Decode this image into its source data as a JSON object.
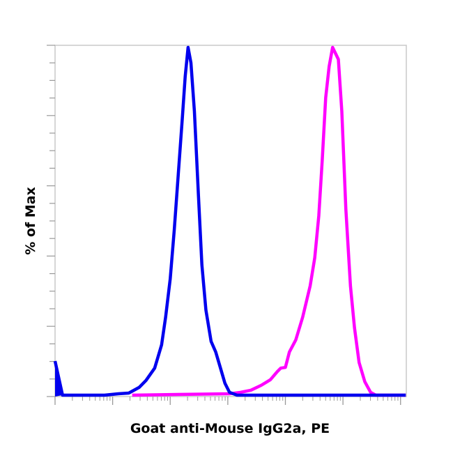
{
  "chart_data": {
    "type": "line",
    "title": "",
    "xlabel": "Goat anti-Mouse IgG2a, PE",
    "ylabel": "% of Max",
    "x_scale": "log (decades, unlabeled)",
    "xlim": [
      0,
      6.1
    ],
    "ylim": [
      0,
      100
    ],
    "grid": false,
    "legend": "none",
    "series": [
      {
        "color": "#0000ee",
        "x": [
          0,
          0.13,
          0.86,
          1.1,
          1.28,
          1.46,
          1.58,
          1.73,
          1.85,
          1.92,
          2.0,
          2.07,
          2.14,
          2.21,
          2.26,
          2.31,
          2.36,
          2.42,
          2.49,
          2.55,
          2.62,
          2.71,
          2.79,
          2.88,
          2.95,
          3.03,
          3.16,
          6.09
        ],
        "y": [
          10.1,
          0.4,
          0.4,
          0.8,
          1.0,
          2.6,
          4.6,
          8.1,
          14.7,
          22.6,
          33.5,
          47.4,
          63.3,
          79.2,
          91.1,
          99.4,
          95.0,
          81.2,
          57.3,
          37.5,
          24.6,
          15.7,
          12.7,
          7.7,
          3.8,
          1.2,
          0.4,
          0.4
        ]
      },
      {
        "color": "#ff00ff",
        "x": [
          1.34,
          3.03,
          3.22,
          3.4,
          3.58,
          3.74,
          3.86,
          3.92,
          4.0,
          4.07,
          4.18,
          4.3,
          4.43,
          4.51,
          4.58,
          4.64,
          4.7,
          4.76,
          4.82,
          4.92,
          4.98,
          5.05,
          5.13,
          5.2,
          5.28,
          5.38,
          5.48,
          5.57,
          6.09
        ],
        "y": [
          0.4,
          0.8,
          1.2,
          1.8,
          3.2,
          4.8,
          7.1,
          8.1,
          8.3,
          12.7,
          16.1,
          22.6,
          31.5,
          39.5,
          51.4,
          67.3,
          85.1,
          94.0,
          99.4,
          96.0,
          81.2,
          53.4,
          31.5,
          19.6,
          9.7,
          4.2,
          1.2,
          0.4,
          0.4
        ]
      }
    ]
  }
}
